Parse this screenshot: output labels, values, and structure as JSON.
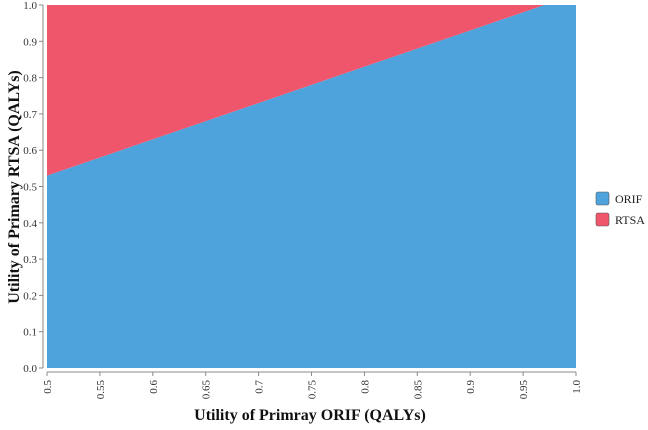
{
  "chart_data": {
    "type": "area",
    "xlabel": "Utility of Primray ORIF (QALYs)",
    "ylabel": "Utility of Primary RTSA (QALYs)",
    "xlim": [
      0.5,
      1.0
    ],
    "ylim": [
      0.0,
      1.0
    ],
    "x_ticks": [
      "0.5",
      "0.55",
      "0.6",
      "0.65",
      "0.7",
      "0.75",
      "0.8",
      "0.85",
      "0.9",
      "0.95",
      "1.0"
    ],
    "y_ticks": [
      "0.0",
      "0.1",
      "0.2",
      "0.3",
      "0.4",
      "0.5",
      "0.6",
      "0.7",
      "0.8",
      "0.9",
      "1.0"
    ],
    "boundary": {
      "x": [
        0.5,
        0.97
      ],
      "y": [
        0.53,
        1.0
      ]
    },
    "regions": [
      {
        "name": "ORIF",
        "color": "#4fa3dd",
        "position": "below boundary"
      },
      {
        "name": "RTSA",
        "color": "#f0566b",
        "position": "above boundary"
      }
    ],
    "grid": false,
    "legend_position": "right"
  }
}
